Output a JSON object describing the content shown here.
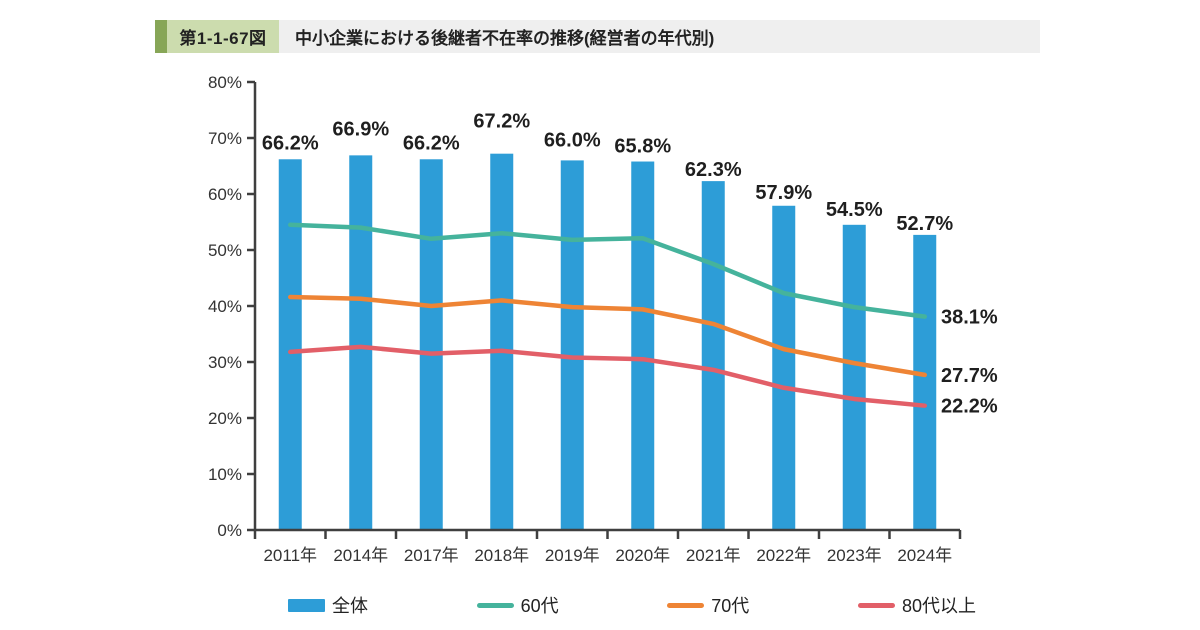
{
  "header": {
    "figure_label": "第1-1-67図",
    "title": "中小企業における後継者不在率の推移(経営者の年代別)"
  },
  "colors": {
    "bar": "#2d9dd7",
    "axis": "#3f3f3f",
    "header_accent": "#87a657",
    "header_badge": "#ccdcae",
    "header_strip": "#efefef",
    "value_label_text": "#1f1f1f",
    "tick_label_text": "#333333"
  },
  "chart_data": {
    "type": "bar",
    "subtype": "bar-line-combo",
    "title": "中小企業における後継者不在率の推移(経営者の年代別)",
    "categories": [
      "2011年",
      "2014年",
      "2017年",
      "2018年",
      "2019年",
      "2020年",
      "2021年",
      "2022年",
      "2023年",
      "2024年"
    ],
    "bar_series": {
      "name": "全体",
      "color": "#2d9dd7",
      "values": [
        66.2,
        66.9,
        66.2,
        67.2,
        66.0,
        65.8,
        62.3,
        57.9,
        54.5,
        52.7
      ],
      "labels": [
        "66.2%",
        "66.9%",
        "66.2%",
        "67.2%",
        "66.0%",
        "65.8%",
        "62.3%",
        "57.9%",
        "54.5%",
        "52.7%"
      ]
    },
    "line_series": [
      {
        "name": "60代",
        "color": "#45b39c",
        "values": [
          54.5,
          54.0,
          52.0,
          53.0,
          51.8,
          52.1,
          47.5,
          42.3,
          39.8,
          38.1
        ],
        "end_label": "38.1%"
      },
      {
        "name": "70代",
        "color": "#ee8435",
        "values": [
          41.6,
          41.3,
          40.0,
          41.0,
          39.8,
          39.4,
          36.8,
          32.3,
          29.8,
          27.7
        ],
        "end_label": "27.7%"
      },
      {
        "name": "80代以上",
        "color": "#e25f68",
        "values": [
          31.8,
          32.7,
          31.5,
          32.0,
          30.8,
          30.5,
          28.6,
          25.4,
          23.4,
          22.2
        ],
        "end_label": "22.2%"
      }
    ],
    "ylim": [
      0,
      80
    ],
    "ytick_step": 10,
    "ytick_labels": [
      "0%",
      "10%",
      "20%",
      "30%",
      "40%",
      "50%",
      "60%",
      "70%",
      "80%"
    ],
    "grid": false,
    "legend_position": "bottom",
    "bar_label_offsets": [
      10,
      20,
      10,
      26,
      14,
      9,
      5,
      7,
      9,
      5
    ]
  },
  "legend": {
    "items": [
      {
        "label": "全体",
        "swatch": "rect",
        "color": "#2d9dd7"
      },
      {
        "label": "60代",
        "swatch": "line",
        "color": "#45b39c"
      },
      {
        "label": "70代",
        "swatch": "line",
        "color": "#ee8435"
      },
      {
        "label": "80代以上",
        "swatch": "line",
        "color": "#e25f68"
      }
    ]
  }
}
